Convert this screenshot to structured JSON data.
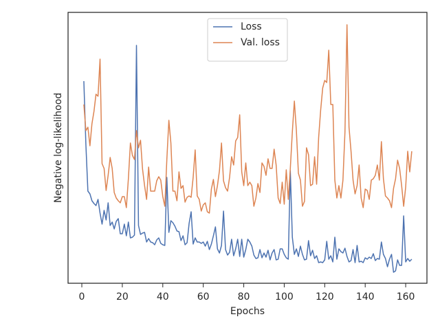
{
  "chart_data": {
    "type": "line",
    "x_label": "Epochs",
    "y_label": "Negative log-likelihood",
    "xlim": [
      -6.8,
      170.5
    ],
    "xticks": [
      0,
      20,
      40,
      60,
      80,
      100,
      120,
      140,
      160
    ],
    "ylim": [
      0,
      394
    ],
    "legend": "upper center",
    "x": [
      1,
      2,
      3,
      4,
      5,
      6,
      7,
      8,
      9,
      10,
      11,
      12,
      13,
      14,
      15,
      16,
      17,
      18,
      19,
      20,
      21,
      22,
      23,
      24,
      25,
      26,
      27,
      28,
      29,
      30,
      31,
      32,
      33,
      34,
      35,
      36,
      37,
      38,
      39,
      40,
      41,
      42,
      43,
      44,
      45,
      46,
      47,
      48,
      49,
      50,
      51,
      52,
      53,
      54,
      55,
      56,
      57,
      58,
      59,
      60,
      61,
      62,
      63,
      64,
      65,
      66,
      67,
      68,
      69,
      70,
      71,
      72,
      73,
      74,
      75,
      76,
      77,
      78,
      79,
      80,
      81,
      82,
      83,
      84,
      85,
      86,
      87,
      88,
      89,
      90,
      91,
      92,
      93,
      94,
      95,
      96,
      97,
      98,
      99,
      100,
      101,
      102,
      103,
      104,
      105,
      106,
      107,
      108,
      109,
      110,
      111,
      112,
      113,
      114,
      115,
      116,
      117,
      118,
      119,
      120,
      121,
      122,
      123,
      124,
      125,
      126,
      127,
      128,
      129,
      130,
      131,
      132,
      133,
      134,
      135,
      136,
      137,
      138,
      139,
      140,
      141,
      142,
      143,
      144,
      145,
      146,
      147,
      148,
      149,
      150,
      151,
      152,
      153,
      154,
      155,
      156,
      157,
      158,
      159,
      160,
      161,
      162,
      163
    ],
    "series": [
      {
        "name": "Loss",
        "color": "#4c72b0",
        "values": [
          294,
          202,
          134,
          130,
          120,
          116,
          113,
          122,
          102,
          86,
          106,
          92,
          117,
          84,
          89,
          79,
          90,
          94,
          72,
          72,
          86,
          69,
          89,
          66,
          67,
          70,
          346,
          84,
          71,
          73,
          74,
          60,
          65,
          60,
          59,
          56,
          63,
          66,
          58,
          56,
          55,
          154,
          74,
          91,
          88,
          83,
          76,
          75,
          62,
          69,
          56,
          59,
          87,
          104,
          57,
          66,
          60,
          60,
          58,
          60,
          54,
          61,
          49,
          57,
          69,
          82,
          50,
          44,
          55,
          105,
          49,
          41,
          45,
          64,
          40,
          50,
          64,
          39,
          64,
          38,
          49,
          64,
          60,
          54,
          41,
          36,
          37,
          49,
          37,
          44,
          38,
          48,
          34,
          44,
          49,
          34,
          35,
          50,
          50,
          42,
          37,
          35,
          164,
          67,
          42,
          50,
          39,
          54,
          42,
          34,
          35,
          62,
          40,
          48,
          36,
          40,
          30,
          31,
          30,
          34,
          61,
          35,
          40,
          31,
          67,
          35,
          50,
          46,
          44,
          51,
          39,
          31,
          33,
          49,
          30,
          55,
          31,
          32,
          30,
          37,
          35,
          38,
          36,
          43,
          33,
          36,
          35,
          60,
          42,
          36,
          24,
          35,
          42,
          16,
          18,
          34,
          26,
          26,
          98,
          31,
          36,
          32,
          35
        ]
      },
      {
        "name": "Val. loss",
        "color": "#dd8452",
        "values": [
          260,
          222,
          227,
          200,
          232,
          250,
          275,
          272,
          326,
          174,
          167,
          135,
          157,
          183,
          167,
          132,
          124,
          120,
          117,
          126,
          126,
          110,
          152,
          204,
          186,
          180,
          222,
          197,
          208,
          166,
          142,
          122,
          169,
          134,
          134,
          134,
          149,
          155,
          150,
          126,
          112,
          180,
          237,
          204,
          134,
          134,
          120,
          162,
          138,
          142,
          118,
          125,
          127,
          125,
          154,
          194,
          127,
          122,
          105,
          114,
          117,
          104,
          102,
          137,
          151,
          126,
          142,
          164,
          204,
          149,
          139,
          134,
          154,
          184,
          172,
          207,
          212,
          245,
          162,
          142,
          175,
          142,
          147,
          142,
          112,
          124,
          145,
          132,
          175,
          170,
          157,
          181,
          167,
          167,
          195,
          172,
          124,
          116,
          147,
          115,
          165,
          122,
          167,
          220,
          265,
          222,
          160,
          150,
          112,
          119,
          197,
          187,
          142,
          144,
          184,
          144,
          212,
          252,
          284,
          295,
          292,
          339,
          260,
          260,
          150,
          124,
          142,
          124,
          150,
          220,
          376,
          227,
          192,
          150,
          130,
          142,
          172,
          124,
          110,
          137,
          135,
          122,
          150,
          152,
          157,
          172,
          150,
          206,
          152,
          127,
          124,
          120,
          110,
          138,
          152,
          179,
          167,
          142,
          112,
          140,
          192,
          162,
          192
        ]
      }
    ]
  }
}
